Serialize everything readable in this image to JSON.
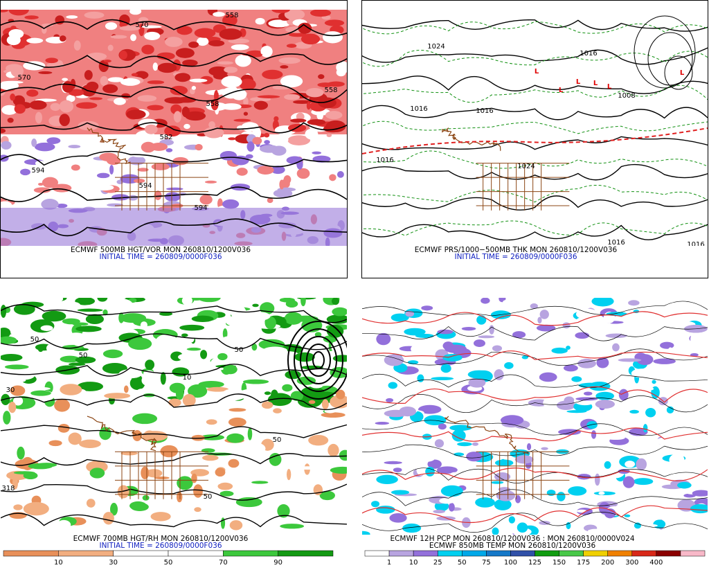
{
  "panels": [
    {
      "title": "ECMWF 500MB HGT/VOR MON 260810/1200V036",
      "subtitle": "INITIAL TIME = 260809/0000F036",
      "contour_labels": [
        "558",
        "570",
        "570",
        "558",
        "582",
        "594",
        "594",
        "594",
        "558"
      ]
    },
    {
      "title": "ECMWF PRS/1000−500MB THK MON 260810/1200V036",
      "subtitle": "INITIAL TIME = 260809/0000F036",
      "contour_labels": [
        "1024",
        "1016",
        "1016",
        "1016",
        "1008",
        "1016",
        "1024",
        "1016",
        "1016"
      ],
      "centers": [
        "L",
        "L",
        "L",
        "L",
        "L",
        "L"
      ]
    },
    {
      "title": "ECMWF 700MB HGT/RH MON 260810/1200V036",
      "subtitle": "INITIAL TIME = 260809/0000F036",
      "contour_labels": [
        "50",
        "50",
        "30",
        "10",
        "50",
        "50",
        "50",
        "318"
      ],
      "colorbar": {
        "labels": [
          "10",
          "30",
          "50",
          "70",
          "90"
        ],
        "colors": [
          "#e8905a",
          "#f2ae80",
          "#ffffff",
          "#ffffff",
          "#3cc83c",
          "#139a13"
        ]
      }
    },
    {
      "title": "ECMWF 12H PCP MON 260810/1200V036 : MON 260810/0000V024",
      "subtitle": "ECMWF 850MB TEMP MON 260810/1200V036",
      "colorbar": {
        "labels": [
          "1",
          "10",
          "25",
          "50",
          "75",
          "100",
          "125",
          "150",
          "175",
          "200",
          "300",
          "400"
        ],
        "colors": [
          "#ffffff",
          "#b8a4e0",
          "#9370db",
          "#00d0f0",
          "#00a8e8",
          "#1478c8",
          "#3050a8",
          "#109c10",
          "#48c848",
          "#f0d000",
          "#f08000",
          "#d82818",
          "#8b0000",
          "#f8b8c8"
        ]
      }
    }
  ]
}
